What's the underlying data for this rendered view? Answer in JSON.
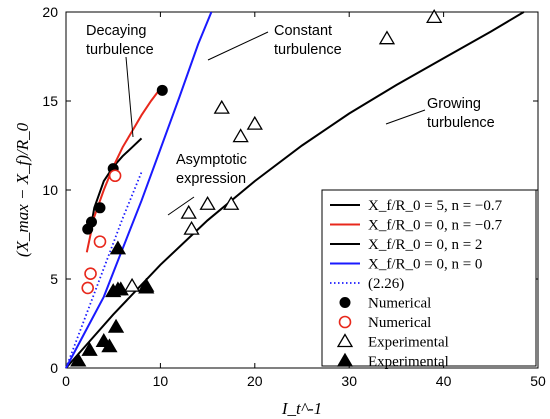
{
  "chart_data": {
    "type": "scatter",
    "xlabel": "I_t^-1",
    "ylabel": "(X_max − X_f)/R_0",
    "xlim": [
      0,
      50
    ],
    "ylim": [
      0,
      20
    ],
    "xticks": [
      "0",
      "10",
      "20",
      "30",
      "40",
      "50"
    ],
    "yticks": [
      "0",
      "5",
      "10",
      "15",
      "20"
    ],
    "grid": false,
    "legend_position": "bottom-right",
    "annotations": [
      {
        "lines": [
          "Decaying",
          "turbulence"
        ]
      },
      {
        "lines": [
          "Constant",
          "turbulence"
        ]
      },
      {
        "lines": [
          "Asymptotic",
          "expression"
        ]
      },
      {
        "lines": [
          "Growing",
          "turbulence"
        ]
      }
    ],
    "series": [
      {
        "name": "X_f/R_0 = 5, n = −0.7",
        "kind": "line",
        "color": "#000000",
        "style": "solid",
        "x": [
          2.5,
          3.0,
          4.0,
          5.0,
          6.0,
          7.0,
          8.0
        ],
        "y": [
          7.5,
          9.0,
          10.5,
          11.3,
          11.9,
          12.4,
          12.9
        ]
      },
      {
        "name": "X_f/R_0 = 0, n = −0.7",
        "kind": "line",
        "color": "#e8281c",
        "style": "solid",
        "x": [
          2.2,
          3.0,
          4.0,
          5.0,
          6.0,
          7.0,
          8.0,
          9.0,
          10.0
        ],
        "y": [
          6.5,
          8.5,
          10.0,
          11.3,
          12.4,
          13.3,
          14.2,
          15.0,
          15.7
        ]
      },
      {
        "name": "X_f/R_0 = 0, n = 2",
        "kind": "line",
        "color": "#000000",
        "style": "solid",
        "x": [
          0,
          2,
          5,
          10,
          15,
          20,
          25,
          30,
          35,
          40,
          45,
          48.5
        ],
        "y": [
          0,
          1.2,
          3.0,
          5.8,
          8.3,
          10.5,
          12.5,
          14.3,
          15.9,
          17.4,
          18.9,
          20.0
        ]
      },
      {
        "name": "X_f/R_0 = 0, n = 0",
        "kind": "line",
        "color": "#1a1aff",
        "style": "solid",
        "x": [
          0,
          2,
          4,
          6,
          8,
          10,
          12,
          14,
          15.4
        ],
        "y": [
          0,
          2.0,
          4.0,
          6.7,
          9.4,
          12.3,
          15.2,
          18.2,
          20.0
        ]
      },
      {
        "name": "(2.26)",
        "kind": "line",
        "color": "#1a1aff",
        "style": "dotted",
        "x": [
          0,
          2,
          4,
          6,
          8
        ],
        "y": [
          0,
          2.8,
          5.6,
          8.4,
          11.0
        ]
      },
      {
        "name": "Numerical",
        "kind": "marker",
        "marker": "filled-circle",
        "color": "#000000",
        "x": [
          2.3,
          2.7,
          3.6,
          5.0,
          10.2
        ],
        "y": [
          7.8,
          8.2,
          9.0,
          11.2,
          15.6
        ]
      },
      {
        "name": "Numerical",
        "kind": "marker",
        "marker": "open-circle",
        "color": "#e8281c",
        "x": [
          2.3,
          2.6,
          3.6,
          5.2
        ],
        "y": [
          4.5,
          5.3,
          7.1,
          10.8
        ]
      },
      {
        "name": "Experimental",
        "kind": "marker",
        "marker": "open-triangle",
        "color": "#000000",
        "x": [
          7.0,
          8.5,
          13.0,
          13.3,
          15.0,
          16.5,
          17.5,
          18.5,
          20.0,
          34.0,
          39.0
        ],
        "y": [
          4.6,
          4.6,
          8.7,
          7.8,
          9.2,
          14.6,
          9.2,
          13.0,
          13.7,
          18.5,
          19.7
        ]
      },
      {
        "name": "Experimental",
        "kind": "marker",
        "marker": "filled-triangle",
        "color": "#000000",
        "x": [
          1.3,
          2.5,
          4.0,
          4.6,
          5.0,
          5.3,
          5.5,
          5.5,
          5.8,
          8.5
        ],
        "y": [
          0.4,
          1.0,
          1.5,
          1.2,
          4.3,
          2.3,
          6.7,
          4.4,
          4.4,
          4.5
        ]
      }
    ]
  }
}
